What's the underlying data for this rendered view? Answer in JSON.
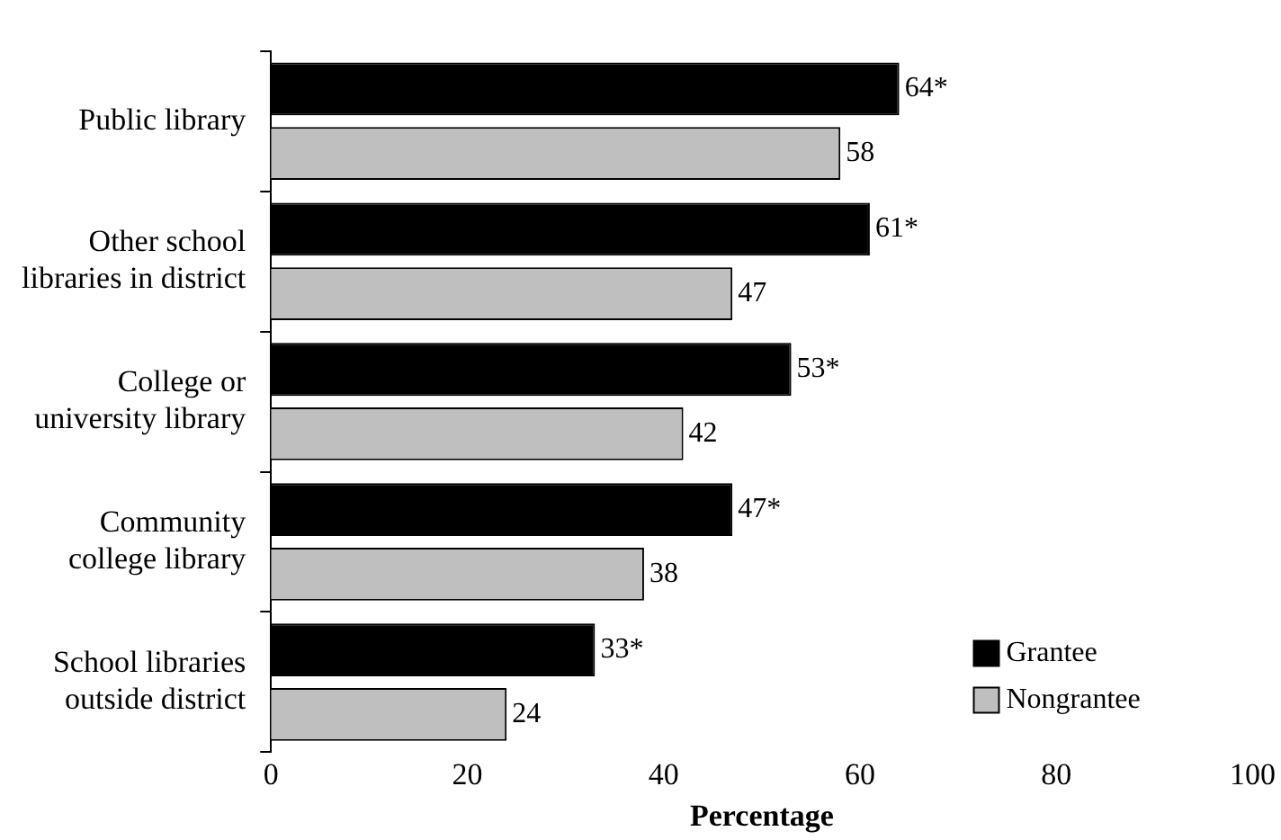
{
  "chart_data": {
    "type": "bar",
    "orientation": "horizontal",
    "xlabel": "Percentage",
    "categories": [
      "Public library",
      "Other school libraries in district",
      "College or university library",
      "Community college library",
      "School libraries outside district"
    ],
    "series": [
      {
        "name": "Grantee",
        "color": "#000000",
        "values": [
          64,
          61,
          53,
          47,
          33
        ],
        "value_labels": [
          "64*",
          "61*",
          "53*",
          "47*",
          "33*"
        ]
      },
      {
        "name": "Nongrantee",
        "color": "#bfbfbf",
        "values": [
          58,
          47,
          42,
          38,
          24
        ],
        "value_labels": [
          "58",
          "47",
          "42",
          "38",
          "24"
        ]
      }
    ],
    "xlim": [
      0,
      100
    ],
    "xticks": [
      0,
      20,
      40,
      60,
      80,
      100
    ],
    "grid": false,
    "legend": "bottom right"
  }
}
